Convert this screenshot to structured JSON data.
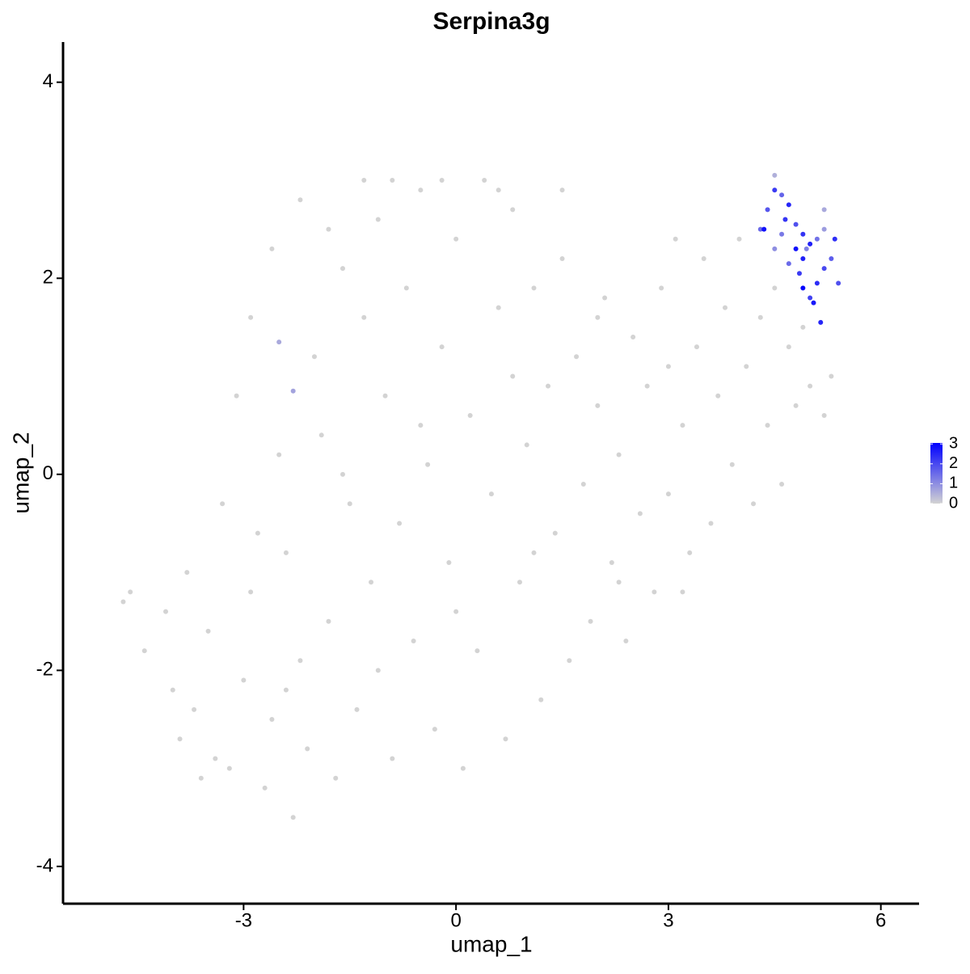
{
  "chart_data": {
    "type": "scatter",
    "title": "Serpina3g",
    "x_label": "umap_1",
    "y_label": "umap_2",
    "xlim": [
      -5.55,
      6.54
    ],
    "ylim": [
      -4.38,
      4.41
    ],
    "xticks": [
      -3,
      0,
      3,
      6
    ],
    "yticks": [
      -4,
      -2,
      0,
      2,
      4
    ],
    "color_scale": {
      "low": "#d3d3d3",
      "high": "#0000ff",
      "limits": [
        0,
        3.05
      ],
      "ticks": [
        0,
        1,
        2,
        3
      ]
    },
    "x": [
      -4.7,
      -4.6,
      -4.4,
      -4.1,
      -4.0,
      -3.9,
      -3.7,
      -3.5,
      -3.4,
      -3.2,
      -3.0,
      -2.9,
      -2.8,
      -2.7,
      -2.6,
      -2.5,
      -2.4,
      -2.3,
      -2.2,
      -2.1,
      -2.0,
      -1.9,
      -1.8,
      -1.7,
      -1.6,
      -1.5,
      -1.4,
      -1.3,
      -1.2,
      -1.1,
      -1.0,
      -0.9,
      -0.8,
      -0.7,
      -0.6,
      -0.5,
      -0.4,
      -0.3,
      -0.2,
      -0.1,
      0.0,
      0.1,
      0.2,
      0.3,
      0.4,
      0.5,
      0.6,
      0.7,
      0.8,
      0.9,
      1.0,
      1.1,
      1.2,
      1.3,
      1.4,
      1.5,
      1.6,
      1.7,
      1.8,
      1.9,
      2.0,
      2.1,
      2.2,
      2.3,
      2.4,
      2.5,
      2.6,
      2.7,
      2.8,
      2.9,
      3.0,
      3.1,
      3.2,
      3.3,
      3.4,
      3.5,
      3.6,
      3.7,
      3.8,
      3.9,
      4.0,
      4.1,
      4.2,
      4.3,
      4.4,
      4.5,
      4.6,
      4.7,
      4.8,
      4.9,
      5.0,
      5.2,
      5.3,
      -3.8,
      -3.3,
      -3.1,
      -2.9,
      -2.6,
      -2.2,
      -1.8,
      -1.3,
      -0.9,
      -0.2,
      0.6,
      1.5,
      -3.6,
      -2.4,
      -1.1,
      0.0,
      1.1,
      2.3,
      3.2,
      -1.6,
      -0.5,
      0.8,
      2.0,
      3.0,
      -2.5,
      -2.3,
      4.3,
      4.35,
      4.5,
      4.5,
      4.6,
      4.4,
      4.7,
      4.8,
      4.9,
      5.0,
      4.95,
      5.1,
      5.2,
      5.35,
      5.3,
      5.2,
      5.1,
      5.0,
      4.9,
      4.85,
      4.7,
      4.8,
      4.6,
      4.5,
      5.05,
      5.15,
      5.4,
      4.9,
      4.65,
      5.2
    ],
    "y": [
      -1.3,
      -1.2,
      -1.8,
      -1.4,
      -2.2,
      -2.7,
      -2.4,
      -1.6,
      -2.9,
      -3.0,
      -2.1,
      -1.2,
      -0.6,
      -3.2,
      -2.5,
      0.2,
      -0.8,
      -3.5,
      -1.9,
      -2.8,
      1.2,
      0.4,
      -1.5,
      -3.1,
      2.1,
      -0.3,
      -2.4,
      1.6,
      -1.1,
      2.6,
      0.8,
      -2.9,
      -0.5,
      1.9,
      -1.7,
      2.9,
      0.1,
      -2.6,
      1.3,
      -0.9,
      2.4,
      -3.0,
      0.6,
      -1.8,
      3.0,
      -0.2,
      1.7,
      -2.7,
      2.7,
      -1.1,
      0.3,
      1.9,
      -2.3,
      0.9,
      -0.6,
      2.2,
      -1.9,
      1.2,
      -0.1,
      -1.5,
      0.7,
      1.8,
      -0.9,
      0.2,
      -1.7,
      1.4,
      -0.4,
      0.9,
      -1.2,
      1.9,
      -0.2,
      2.4,
      0.5,
      -0.8,
      1.3,
      2.2,
      -0.5,
      0.8,
      1.7,
      0.1,
      2.4,
      1.1,
      -0.3,
      1.6,
      0.5,
      1.9,
      -0.1,
      1.3,
      0.7,
      1.5,
      0.9,
      0.6,
      1.0,
      -1.0,
      -0.3,
      0.8,
      1.6,
      2.3,
      2.8,
      2.5,
      3.0,
      3.0,
      3.0,
      2.9,
      2.9,
      -3.1,
      -2.2,
      -2.0,
      -1.4,
      -0.8,
      -1.1,
      -1.2,
      0.0,
      0.5,
      1.0,
      1.6,
      1.1,
      1.35,
      0.85,
      2.5,
      2.5,
      3.05,
      2.9,
      2.85,
      2.7,
      2.75,
      2.55,
      2.45,
      2.35,
      2.3,
      2.4,
      2.5,
      2.4,
      2.2,
      2.1,
      1.95,
      1.8,
      1.9,
      2.05,
      2.15,
      2.3,
      2.45,
      2.3,
      1.75,
      1.55,
      1.95,
      2.2,
      2.6,
      2.7
    ],
    "values": [
      0,
      0,
      0,
      0,
      0,
      0,
      0,
      0,
      0,
      0,
      0,
      0,
      0,
      0,
      0,
      0,
      0,
      0,
      0,
      0,
      0,
      0,
      0,
      0,
      0,
      0,
      0,
      0,
      0,
      0,
      0,
      0,
      0,
      0,
      0,
      0,
      0,
      0,
      0,
      0,
      0,
      0,
      0,
      0,
      0,
      0,
      0,
      0,
      0,
      0,
      0,
      0,
      0,
      0,
      0,
      0,
      0,
      0,
      0,
      0,
      0,
      0,
      0,
      0,
      0,
      0,
      0,
      0,
      0,
      0,
      0,
      0,
      0,
      0,
      0,
      0,
      0,
      0,
      0,
      0,
      0,
      0,
      0,
      0,
      0,
      0,
      0,
      0,
      0,
      0,
      0,
      0,
      0,
      0,
      0,
      0,
      0,
      0,
      0,
      0,
      0,
      0,
      0,
      0,
      0,
      0,
      0,
      0,
      0,
      0,
      0,
      0,
      0,
      0,
      0,
      0,
      0,
      0.6,
      0.7,
      1.5,
      2.8,
      0.5,
      2.2,
      1.6,
      1.8,
      2.5,
      1.9,
      2.3,
      2.6,
      1.2,
      1.4,
      0.8,
      2.4,
      1.7,
      2.0,
      2.4,
      2.1,
      3.0,
      2.2,
      1.5,
      2.8,
      1.3,
      1.0,
      2.7,
      2.5,
      1.9,
      2.6,
      2.3,
      0.6
    ]
  }
}
